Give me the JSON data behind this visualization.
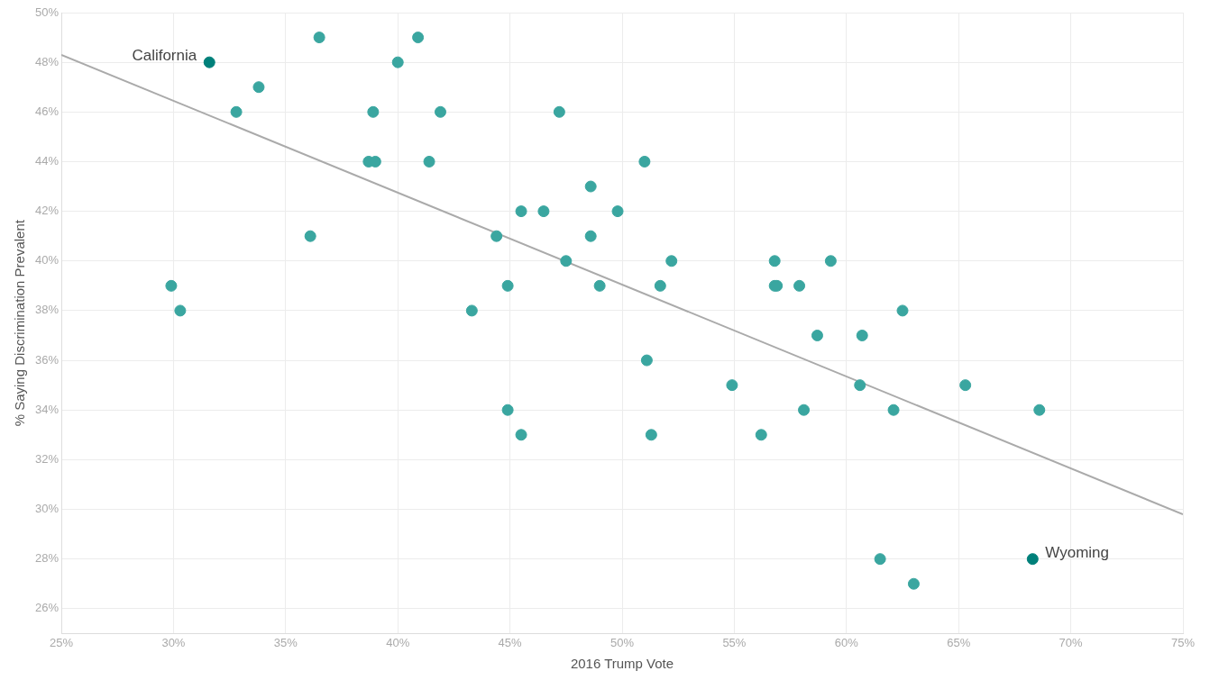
{
  "chart_data": {
    "type": "scatter",
    "xlabel": "2016 Trump Vote",
    "ylabel": "% Saying Discrimination Prevalent",
    "xlim": [
      25,
      75
    ],
    "ylim": [
      25,
      50
    ],
    "xticks": [
      {
        "value": 25,
        "label": "25%"
      },
      {
        "value": 30,
        "label": "30%"
      },
      {
        "value": 35,
        "label": "35%"
      },
      {
        "value": 40,
        "label": "40%"
      },
      {
        "value": 45,
        "label": "45%"
      },
      {
        "value": 50,
        "label": "50%"
      },
      {
        "value": 55,
        "label": "55%"
      },
      {
        "value": 60,
        "label": "60%"
      },
      {
        "value": 65,
        "label": "65%"
      },
      {
        "value": 70,
        "label": "70%"
      },
      {
        "value": 75,
        "label": "75%"
      }
    ],
    "yticks": [
      {
        "value": 26,
        "label": "26%"
      },
      {
        "value": 28,
        "label": "28%"
      },
      {
        "value": 30,
        "label": "30%"
      },
      {
        "value": 32,
        "label": "32%"
      },
      {
        "value": 34,
        "label": "34%"
      },
      {
        "value": 36,
        "label": "36%"
      },
      {
        "value": 38,
        "label": "38%"
      },
      {
        "value": 40,
        "label": "40%"
      },
      {
        "value": 42,
        "label": "42%"
      },
      {
        "value": 44,
        "label": "44%"
      },
      {
        "value": 46,
        "label": "46%"
      },
      {
        "value": 48,
        "label": "48%"
      },
      {
        "value": 50,
        "label": "50%"
      }
    ],
    "grid": true,
    "legend": false,
    "series": [
      {
        "marker": "circle",
        "colors": [
          "#00807a",
          "#3aa6a0",
          "#3aa6a0",
          "#3aa6a0",
          "#3aa6a0",
          "#3aa6a0",
          "#3aa6a0",
          "#3aa6a0",
          "#3aa6a0",
          "#3aa6a0",
          "#3aa6a0",
          "#3aa6a0",
          "#3aa6a0",
          "#3aa6a0",
          "#3aa6a0",
          "#3aa6a0",
          "#3aa6a0",
          "#3aa6a0",
          "#3aa6a0",
          "#3aa6a0",
          "#3aa6a0",
          "#3aa6a0",
          "#3aa6a0",
          "#3aa6a0",
          "#3aa6a0",
          "#3aa6a0",
          "#3aa6a0",
          "#3aa6a0",
          "#3aa6a0",
          "#3aa6a0",
          "#3aa6a0",
          "#3aa6a0",
          "#3aa6a0",
          "#3aa6a0",
          "#3aa6a0",
          "#3aa6a0",
          "#3aa6a0",
          "#3aa6a0",
          "#3aa6a0",
          "#3aa6a0",
          "#3aa6a0",
          "#3aa6a0",
          "#3aa6a0",
          "#3aa6a0",
          "#3aa6a0",
          "#3aa6a0",
          "#3aa6a0",
          "#3aa6a0",
          "#3aa6a0",
          "#00807a"
        ],
        "x": [
          31.6,
          32.8,
          33.8,
          36.5,
          36.1,
          29.9,
          30.3,
          38.7,
          39.0,
          38.9,
          40.0,
          40.9,
          41.9,
          41.4,
          43.3,
          44.4,
          44.9,
          44.9,
          45.5,
          45.5,
          46.5,
          47.2,
          47.5,
          48.6,
          48.6,
          49.0,
          49.8,
          51.0,
          51.1,
          51.3,
          51.7,
          52.2,
          54.9,
          56.2,
          56.8,
          56.9,
          56.8,
          57.9,
          58.1,
          58.7,
          59.3,
          60.7,
          60.6,
          62.1,
          62.5,
          61.5,
          63.0,
          65.3,
          68.6,
          68.3
        ],
        "values": [
          48,
          46,
          47,
          49,
          41,
          39,
          38,
          44,
          44,
          46,
          48,
          49,
          46,
          44,
          38,
          41,
          39,
          34,
          42,
          33,
          42,
          46,
          40,
          43,
          41,
          39,
          42,
          44,
          36,
          33,
          39,
          40,
          35,
          33,
          39,
          39,
          40,
          39,
          34,
          37,
          40,
          37,
          35,
          34,
          38,
          28,
          27,
          35,
          34,
          28
        ]
      },
      {
        "type": "line",
        "marker": "none",
        "color": "#aaaaaa",
        "x": [
          25,
          75
        ],
        "values": [
          48.3,
          29.8
        ]
      }
    ],
    "annotations": [
      {
        "text": "California",
        "x": 31.6,
        "y": 48
      },
      {
        "text": "Wyoming",
        "x": 68.3,
        "y": 28
      }
    ]
  }
}
